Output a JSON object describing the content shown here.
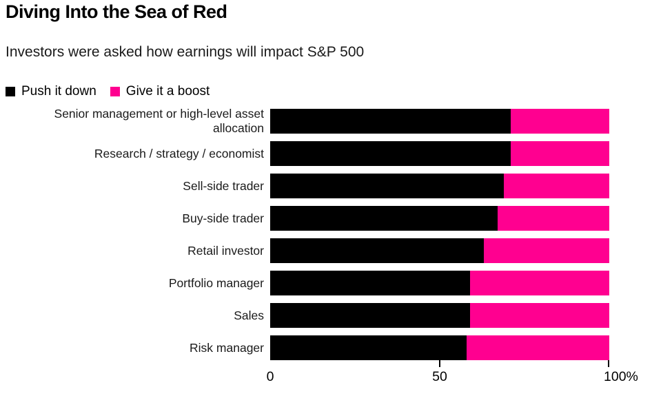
{
  "header": {
    "title": "Diving Into the Sea of Red",
    "subtitle": "Investors were asked how earnings will impact S&P 500"
  },
  "legend": {
    "items": [
      {
        "label": "Push it down",
        "color": "#000000"
      },
      {
        "label": "Give it a boost",
        "color": "#ff0090"
      }
    ]
  },
  "chart_data": {
    "type": "bar",
    "orientation": "horizontal",
    "stacked": true,
    "unit": "%",
    "title": "Diving Into the Sea of Red",
    "subtitle": "Investors were asked how earnings will impact S&P 500",
    "categories": [
      "Senior management or high-level asset allocation",
      "Research / strategy / economist",
      "Sell-side trader",
      "Buy-side trader",
      "Retail investor",
      "Portfolio manager",
      "Sales",
      "Risk manager"
    ],
    "series": [
      {
        "name": "Push it down",
        "color": "#000000",
        "values": [
          71,
          71,
          69,
          67,
          63,
          59,
          59,
          58
        ]
      },
      {
        "name": "Give it a boost",
        "color": "#ff0090",
        "values": [
          29,
          29,
          31,
          33,
          37,
          41,
          41,
          42
        ]
      }
    ],
    "xlim": [
      0,
      100
    ],
    "x_ticks": [
      "0",
      "50",
      "100%"
    ],
    "x_tick_values": [
      0,
      50,
      100
    ],
    "legend_position": "top",
    "grid": false
  }
}
